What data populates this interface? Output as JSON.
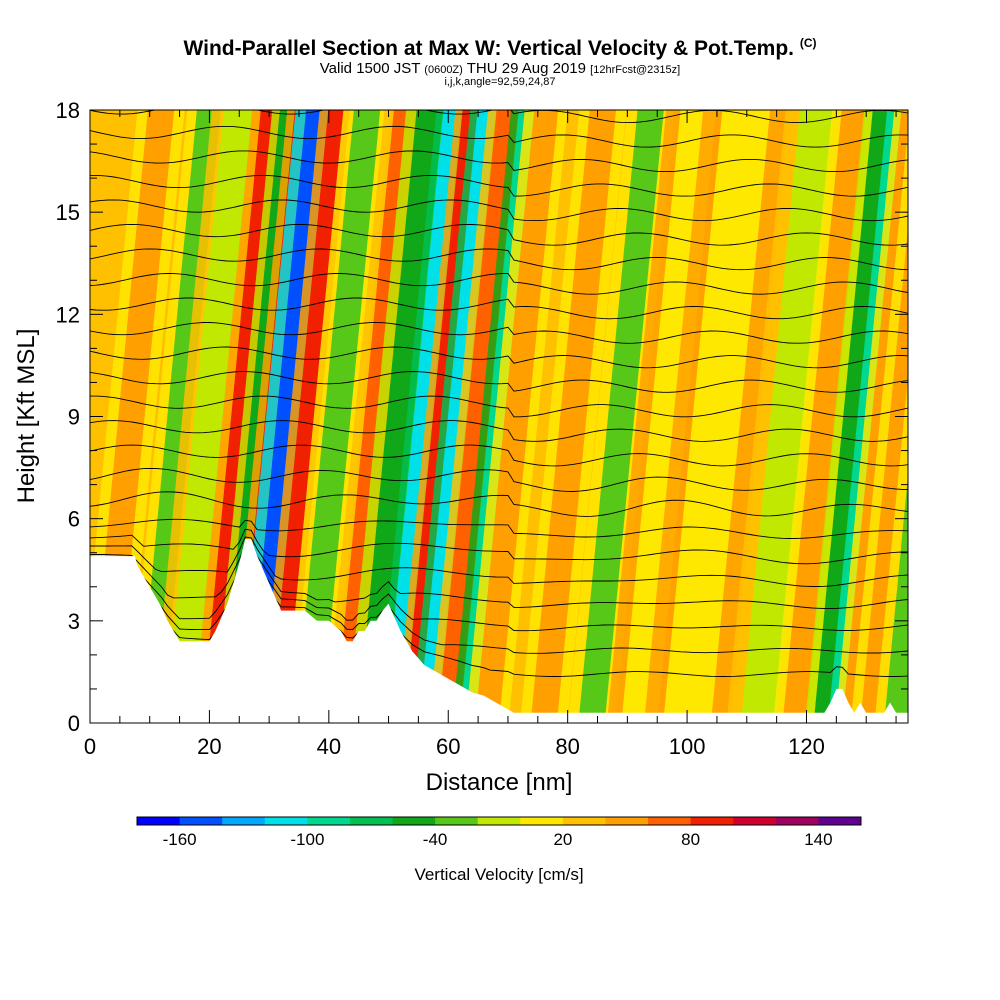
{
  "title": {
    "main": "Wind-Parallel Section at Max W: Vertical Velocity & Pot.Temp.",
    "copyright": "(C)",
    "sub_prefix": "Valid 1500 JST",
    "sub_zulu": "(0600Z)",
    "sub_date": "THU 29 Aug 2019",
    "sub_fcst": "[12hrFcst@2315z]",
    "params": "i,j,k,angle=92,59,24,87"
  },
  "chart_data": {
    "type": "heatmap",
    "xlabel": "Distance [nm]",
    "ylabel": "Height [Kft MSL]",
    "xlim": [
      0,
      137
    ],
    "ylim": [
      0,
      18
    ],
    "x_ticks": [
      "0",
      "20",
      "40",
      "60",
      "80",
      "100",
      "120"
    ],
    "y_ticks": [
      "0",
      "3",
      "6",
      "9",
      "12",
      "15",
      "18"
    ],
    "colorbar": {
      "label": "Vertical Velocity [cm/s]",
      "tick_labels": [
        "-160",
        "-100",
        "-40",
        "20",
        "80",
        "140"
      ],
      "colors": [
        "#0000ff",
        "#0050ff",
        "#00a8ff",
        "#00e0e8",
        "#00d890",
        "#00c050",
        "#10a818",
        "#58c818",
        "#c0e800",
        "#ffe800",
        "#ffc000",
        "#ffa000",
        "#ff6000",
        "#f02000",
        "#d00030",
        "#a00060",
        "#600090"
      ]
    },
    "background_level": 10,
    "bands": [
      {
        "x": 2,
        "w": 2.2,
        "level": 11
      },
      {
        "x": 10,
        "w": 2,
        "level": 7
      },
      {
        "x": 15,
        "w": 2.5,
        "level": 8
      },
      {
        "x": 20.5,
        "w": 1.8,
        "level": 13
      },
      {
        "x": 23.5,
        "w": 1.6,
        "level": 6
      },
      {
        "x": 26,
        "w": 1.6,
        "level": 13
      },
      {
        "x": 28.5,
        "w": 2.2,
        "level": 1
      },
      {
        "x": 31.8,
        "w": 1.8,
        "level": 13
      },
      {
        "x": 36.5,
        "w": 2.2,
        "level": 7
      },
      {
        "x": 43,
        "w": 2,
        "level": 12
      },
      {
        "x": 47,
        "w": 2.2,
        "level": 6
      },
      {
        "x": 50.8,
        "w": 1.5,
        "level": 3
      },
      {
        "x": 54,
        "w": 1.5,
        "level": 13
      },
      {
        "x": 56.5,
        "w": 1.5,
        "level": 3
      },
      {
        "x": 60,
        "w": 1.8,
        "level": 12
      },
      {
        "x": 63.5,
        "w": 1.6,
        "level": 4
      },
      {
        "x": 66.5,
        "w": 2,
        "level": 11
      },
      {
        "x": 76,
        "w": 2.2,
        "level": 11
      },
      {
        "x": 84,
        "w": 2.2,
        "level": 7
      },
      {
        "x": 92,
        "w": 3,
        "level": 9
      },
      {
        "x": 100,
        "w": 4,
        "level": 9
      },
      {
        "x": 112,
        "w": 3,
        "level": 8
      },
      {
        "x": 118,
        "w": 2,
        "level": 11
      },
      {
        "x": 123,
        "w": 1.8,
        "level": 6
      },
      {
        "x": 124.8,
        "w": 1.2,
        "level": 4
      },
      {
        "x": 127.5,
        "w": 1.5,
        "level": 11
      },
      {
        "x": 131,
        "w": 2,
        "level": 11
      },
      {
        "x": 135,
        "w": 2,
        "level": 7
      }
    ],
    "terrain": {
      "x": [
        0,
        7.5,
        8,
        9,
        10,
        11,
        12,
        13,
        14,
        15,
        17,
        19,
        20,
        21,
        22,
        23,
        24,
        25,
        26,
        27,
        28,
        29,
        30,
        31,
        32,
        34,
        36,
        38,
        40,
        42,
        43,
        44,
        45,
        46,
        47,
        48,
        49,
        50,
        51,
        52,
        53,
        54,
        55,
        56,
        58,
        60,
        62,
        64,
        66,
        68,
        70,
        71,
        72,
        73,
        74,
        76,
        80,
        90,
        100,
        110,
        120,
        122,
        123,
        124,
        125,
        126,
        127,
        128,
        129,
        130,
        132,
        133,
        134,
        135,
        136,
        137
      ],
      "height": [
        4.9,
        4.9,
        4.6,
        4.3,
        4.0,
        3.7,
        3.4,
        3.0,
        2.7,
        2.4,
        2.4,
        2.4,
        2.4,
        2.7,
        3.1,
        3.5,
        4.1,
        4.7,
        5.4,
        5.4,
        4.9,
        4.5,
        4.1,
        3.7,
        3.3,
        3.3,
        3.3,
        3.0,
        3.0,
        2.7,
        2.4,
        2.4,
        2.7,
        2.7,
        3.0,
        3.0,
        3.3,
        3.5,
        3.1,
        2.7,
        2.4,
        2.1,
        1.9,
        1.7,
        1.5,
        1.3,
        1.1,
        0.9,
        0.8,
        0.6,
        0.4,
        0.3,
        0.3,
        0.3,
        0.3,
        0.3,
        0.3,
        0.3,
        0.3,
        0.3,
        0.3,
        0.3,
        0.3,
        0.6,
        1.0,
        1.0,
        0.6,
        0.3,
        0.6,
        0.3,
        0.3,
        0.3,
        0.6,
        0.3,
        0.3,
        0.3
      ]
    },
    "isentropes": {
      "description": "potential temperature contours",
      "count": 24,
      "base_height_kft": 1.5,
      "spacing_kft": 0.72
    }
  }
}
